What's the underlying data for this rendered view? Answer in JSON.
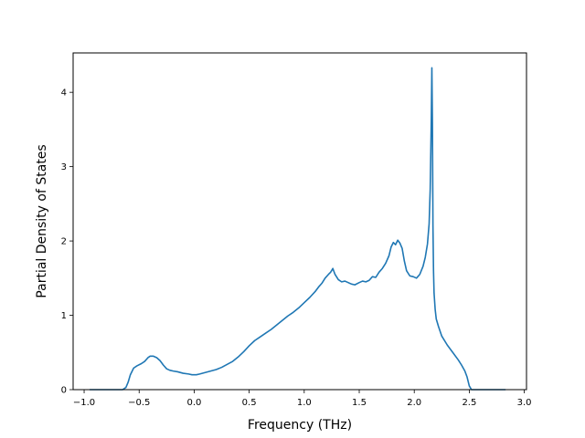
{
  "chart_data": {
    "type": "line",
    "title": "",
    "xlabel": "Frequency (THz)",
    "ylabel": "Partial Density of States",
    "xlim": [
      -1.1,
      3.02
    ],
    "ylim": [
      0,
      4.53
    ],
    "grid": false,
    "line_color": "#1f77b4",
    "x_ticks": [
      -1.0,
      -0.5,
      0.0,
      0.5,
      1.0,
      1.5,
      2.0,
      2.5,
      3.0
    ],
    "x_tick_labels": [
      "−1.0",
      "−0.5",
      "0.0",
      "0.5",
      "1.0",
      "1.5",
      "2.0",
      "2.5",
      "3.0"
    ],
    "y_ticks": [
      0,
      1,
      2,
      3,
      4
    ],
    "y_tick_labels": [
      "0",
      "1",
      "2",
      "3",
      "4"
    ],
    "series": [
      {
        "x": [
          -0.95,
          -0.8,
          -0.65,
          -0.62,
          -0.6,
          -0.58,
          -0.55,
          -0.52,
          -0.48,
          -0.45,
          -0.42,
          -0.4,
          -0.37,
          -0.34,
          -0.31,
          -0.28,
          -0.25,
          -0.22,
          -0.19,
          -0.15,
          -0.1,
          -0.05,
          -0.02,
          0.0,
          0.02,
          0.05,
          0.1,
          0.15,
          0.2,
          0.25,
          0.3,
          0.35,
          0.4,
          0.45,
          0.5,
          0.55,
          0.6,
          0.65,
          0.7,
          0.75,
          0.8,
          0.85,
          0.9,
          0.95,
          1.0,
          1.05,
          1.1,
          1.13,
          1.16,
          1.19,
          1.22,
          1.24,
          1.26,
          1.28,
          1.31,
          1.34,
          1.37,
          1.4,
          1.43,
          1.46,
          1.5,
          1.53,
          1.56,
          1.59,
          1.62,
          1.65,
          1.68,
          1.71,
          1.74,
          1.77,
          1.79,
          1.81,
          1.83,
          1.85,
          1.87,
          1.89,
          1.91,
          1.93,
          1.96,
          1.99,
          2.02,
          2.05,
          2.08,
          2.1,
          2.12,
          2.135,
          2.145,
          2.155,
          2.16,
          2.165,
          2.17,
          2.175,
          2.18,
          2.19,
          2.2,
          2.22,
          2.25,
          2.3,
          2.35,
          2.4,
          2.43,
          2.46,
          2.48,
          2.5,
          2.52,
          2.55,
          2.6,
          2.7,
          2.83
        ],
        "y": [
          0.0,
          0.0,
          0.0,
          0.03,
          0.1,
          0.2,
          0.29,
          0.32,
          0.35,
          0.38,
          0.43,
          0.45,
          0.45,
          0.43,
          0.39,
          0.33,
          0.28,
          0.26,
          0.25,
          0.24,
          0.22,
          0.21,
          0.2,
          0.2,
          0.2,
          0.21,
          0.23,
          0.25,
          0.27,
          0.3,
          0.34,
          0.38,
          0.44,
          0.51,
          0.59,
          0.66,
          0.71,
          0.76,
          0.81,
          0.87,
          0.93,
          0.99,
          1.04,
          1.1,
          1.17,
          1.24,
          1.32,
          1.38,
          1.43,
          1.5,
          1.55,
          1.58,
          1.63,
          1.55,
          1.48,
          1.45,
          1.46,
          1.44,
          1.42,
          1.41,
          1.44,
          1.46,
          1.45,
          1.47,
          1.52,
          1.51,
          1.58,
          1.63,
          1.7,
          1.8,
          1.92,
          1.98,
          1.95,
          2.01,
          1.97,
          1.9,
          1.73,
          1.6,
          1.53,
          1.52,
          1.5,
          1.55,
          1.66,
          1.78,
          1.96,
          2.23,
          2.7,
          3.65,
          4.33,
          3.6,
          2.2,
          1.6,
          1.3,
          1.08,
          0.95,
          0.85,
          0.72,
          0.6,
          0.5,
          0.4,
          0.33,
          0.25,
          0.17,
          0.05,
          0.0,
          0.0,
          0.0,
          0.0,
          0.0
        ]
      }
    ]
  }
}
